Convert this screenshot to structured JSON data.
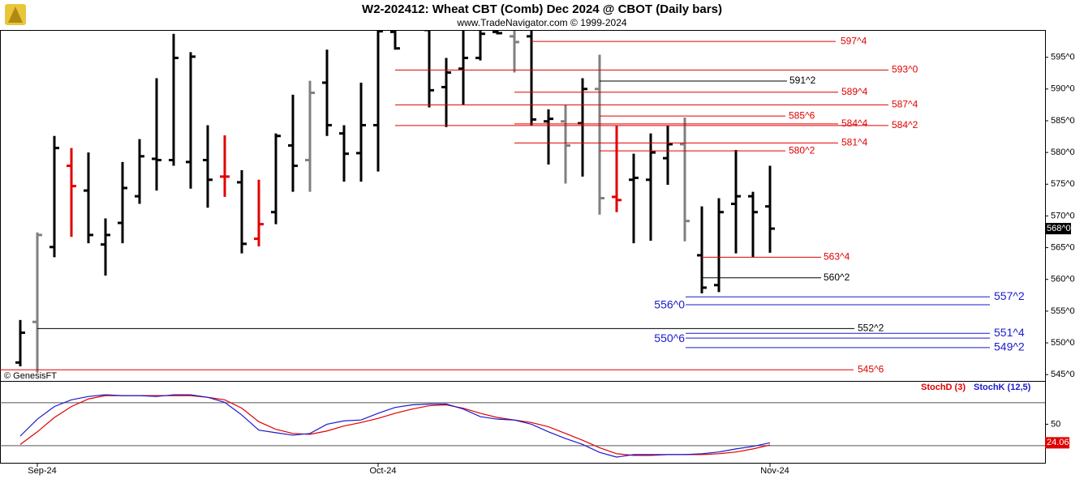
{
  "chart_data": {
    "type": "ohlc",
    "title": "W2-202412:  Wheat CBT (Comb) Dec 2024 @ CBOT  (Daily bars)",
    "subtitle": "www.TradeNavigator.com © 1999-2024",
    "source": "© GenesisFT",
    "categories": [
      null,
      "Sep-24",
      null,
      null,
      null,
      null,
      null,
      null,
      null,
      null,
      null,
      null,
      null,
      null,
      null,
      null,
      null,
      null,
      null,
      null,
      null,
      "Oct-24",
      null,
      null,
      null,
      null,
      null,
      null,
      null,
      null,
      null,
      null,
      null,
      null,
      null,
      null,
      null,
      null,
      null,
      null,
      null,
      null,
      null,
      null,
      "Nov-24"
    ],
    "open": [
      546.9,
      553.3,
      565.1,
      577.9,
      574.0,
      565.5,
      568.9,
      573.1,
      579.0,
      578.8,
      578.5,
      578.8,
      576.2,
      575.3,
      566.4,
      570.6,
      581.1,
      578.8,
      591.0,
      583.0,
      579.9,
      584.3,
      599.0,
      null,
      599.3,
      590.3,
      593.2,
      594.9,
      599.0,
      598.3,
      598.3,
      584.9,
      584.9,
      584.6,
      590.0,
      573.0,
      575.7,
      575.7,
      579.1,
      581.3,
      563.8,
      559.1,
      571.9,
      573.1,
      571.5
    ],
    "high": [
      553.6,
      567.4,
      582.6,
      580.7,
      580.0,
      569.6,
      578.5,
      582.1,
      591.7,
      598.7,
      595.8,
      584.3,
      582.7,
      577.2,
      575.7,
      583.0,
      589.1,
      591.3,
      596.2,
      584.3,
      591.0,
      599.3,
      599.3,
      null,
      599.3,
      594.9,
      599.3,
      599.3,
      599.3,
      599.3,
      599.3,
      586.8,
      587.5,
      591.7,
      595.4,
      584.3,
      579.8,
      583.0,
      584.3,
      585.5,
      571.5,
      572.8,
      580.4,
      573.8,
      577.9
    ],
    "low": [
      546.3,
      545.3,
      563.5,
      566.7,
      565.7,
      560.6,
      565.7,
      571.9,
      574.0,
      577.9,
      574.3,
      571.3,
      573.0,
      564.1,
      565.2,
      568.7,
      573.8,
      573.8,
      582.6,
      575.4,
      575.4,
      577.0,
      596.2,
      null,
      587.1,
      584.0,
      587.5,
      594.5,
      598.6,
      592.6,
      584.3,
      578.1,
      575.1,
      576.2,
      570.2,
      570.6,
      565.7,
      566.1,
      574.9,
      566.0,
      557.8,
      558.0,
      564.1,
      563.5,
      564.2
    ],
    "close": [
      551.6,
      567.0,
      580.7,
      574.7,
      567.0,
      567.0,
      574.4,
      579.4,
      578.8,
      594.9,
      595.1,
      575.7,
      576.2,
      565.6,
      568.7,
      582.6,
      577.9,
      589.4,
      584.3,
      579.8,
      584.3,
      599.1,
      596.4,
      null,
      589.8,
      592.6,
      594.9,
      598.7,
      598.8,
      597.4,
      585.2,
      585.3,
      581.1,
      590.0,
      572.8,
      572.5,
      576.0,
      580.0,
      581.3,
      569.2,
      558.7,
      570.6,
      573.1,
      570.6,
      568.0
    ],
    "bar_colors": [
      "#000000",
      "#808080",
      "#000000",
      "#e00000",
      "#000000",
      "#000000",
      "#000000",
      "#000000",
      "#000000",
      "#000000",
      "#000000",
      "#000000",
      "#e00000",
      "#000000",
      "#e00000",
      "#000000",
      "#000000",
      "#808080",
      "#000000",
      "#000000",
      "#000000",
      "#000000",
      "#000000",
      "#000000",
      "#000000",
      "#000000",
      "#000000",
      "#000000",
      "#000000",
      "#808080",
      "#000000",
      "#000000",
      "#808080",
      "#000000",
      "#808080",
      "#e00000",
      "#000000",
      "#000000",
      "#000000",
      "#808080",
      "#000000",
      "#000000",
      "#000000",
      "#000000",
      "#000000"
    ],
    "last_price": {
      "value": 568,
      "label": "568^0"
    },
    "ylim": [
      544,
      599.3
    ],
    "yticks": [
      {
        "value": 545,
        "label": "545^0"
      },
      {
        "value": 550,
        "label": "550^0"
      },
      {
        "value": 555,
        "label": "555^0"
      },
      {
        "value": 560,
        "label": "560^0"
      },
      {
        "value": 565,
        "label": "565^0"
      },
      {
        "value": 570,
        "label": "570^0"
      },
      {
        "value": 575,
        "label": "575^0"
      },
      {
        "value": 580,
        "label": "580^0"
      },
      {
        "value": 585,
        "label": "585^0"
      },
      {
        "value": 590,
        "label": "590^0"
      },
      {
        "value": 595,
        "label": "595^0"
      }
    ],
    "levels": [
      {
        "value": 597.5,
        "label": "597^4",
        "color": "#e00000"
      },
      {
        "value": 593,
        "label": "593^0",
        "color": "#e00000"
      },
      {
        "value": 591.25,
        "label": "591^2",
        "color": "#000000"
      },
      {
        "value": 589.5,
        "label": "589^4",
        "color": "#e00000"
      },
      {
        "value": 587.5,
        "label": "587^4",
        "color": "#e00000"
      },
      {
        "value": 585.75,
        "label": "585^6",
        "color": "#e00000"
      },
      {
        "value": 584.5,
        "label": "584^4",
        "color": "#e00000"
      },
      {
        "value": 584.25,
        "label": "584^2",
        "color": "#e00000"
      },
      {
        "value": 581.5,
        "label": "581^4",
        "color": "#e00000"
      },
      {
        "value": 580.25,
        "label": "580^2",
        "color": "#e00000"
      },
      {
        "value": 563.5,
        "label": "563^4",
        "color": "#e00000"
      },
      {
        "value": 560.25,
        "label": "560^2",
        "color": "#000000"
      },
      {
        "value": 557.25,
        "label": "557^2",
        "color": "#1a1acc"
      },
      {
        "value": 556,
        "label": "556^0",
        "color": "#1a1acc"
      },
      {
        "value": 552.25,
        "label": "552^2",
        "color": "#000000"
      },
      {
        "value": 551.5,
        "label": "551^4",
        "color": "#1a1acc"
      },
      {
        "value": 550.75,
        "label": "550^6",
        "color": "#1a1acc"
      },
      {
        "value": 549.25,
        "label": "549^2",
        "color": "#1a1acc"
      },
      {
        "value": 545.75,
        "label": "545^6",
        "color": "#e00000"
      }
    ],
    "indicator": {
      "type": "line",
      "ylim": [
        -5,
        110.5
      ],
      "yticks": [
        50
      ],
      "bands": [
        20,
        80
      ],
      "series": [
        {
          "name": "StochD (3)",
          "color": "#e00000",
          "values": [
            21.8,
            39.4,
            59.4,
            74.7,
            85.3,
            90,
            90,
            90,
            90,
            90,
            90,
            87.6,
            84.1,
            72.4,
            53.5,
            42.9,
            37.1,
            35.9,
            40.6,
            47.6,
            52.4,
            58.2,
            65.3,
            71.2,
            75.9,
            77.1,
            72.4,
            65.3,
            59.4,
            55.9,
            52.4,
            46.5,
            37.1,
            27.6,
            17.1,
            8.8,
            6.5,
            6.5,
            7.6,
            7.6,
            7.6,
            8.8,
            11.2,
            15.5,
            21
          ]
        },
        {
          "name": "StochK (12,5)",
          "color": "#1a1acc",
          "values": [
            33.5,
            57.1,
            74.7,
            84.1,
            88.8,
            91.2,
            90,
            90,
            88.8,
            91.2,
            91.2,
            87.6,
            80.6,
            62.9,
            41.8,
            38.2,
            34.7,
            37.1,
            50,
            54.7,
            55.9,
            65.3,
            73.5,
            77.1,
            78.2,
            78.2,
            71.2,
            60.6,
            57.1,
            55.9,
            50,
            39.4,
            30,
            21.8,
            10.6,
            4.1,
            7.6,
            7.6,
            7.6,
            7.6,
            8.8,
            11.2,
            15.5,
            19,
            24.06
          ]
        }
      ]
    }
  }
}
